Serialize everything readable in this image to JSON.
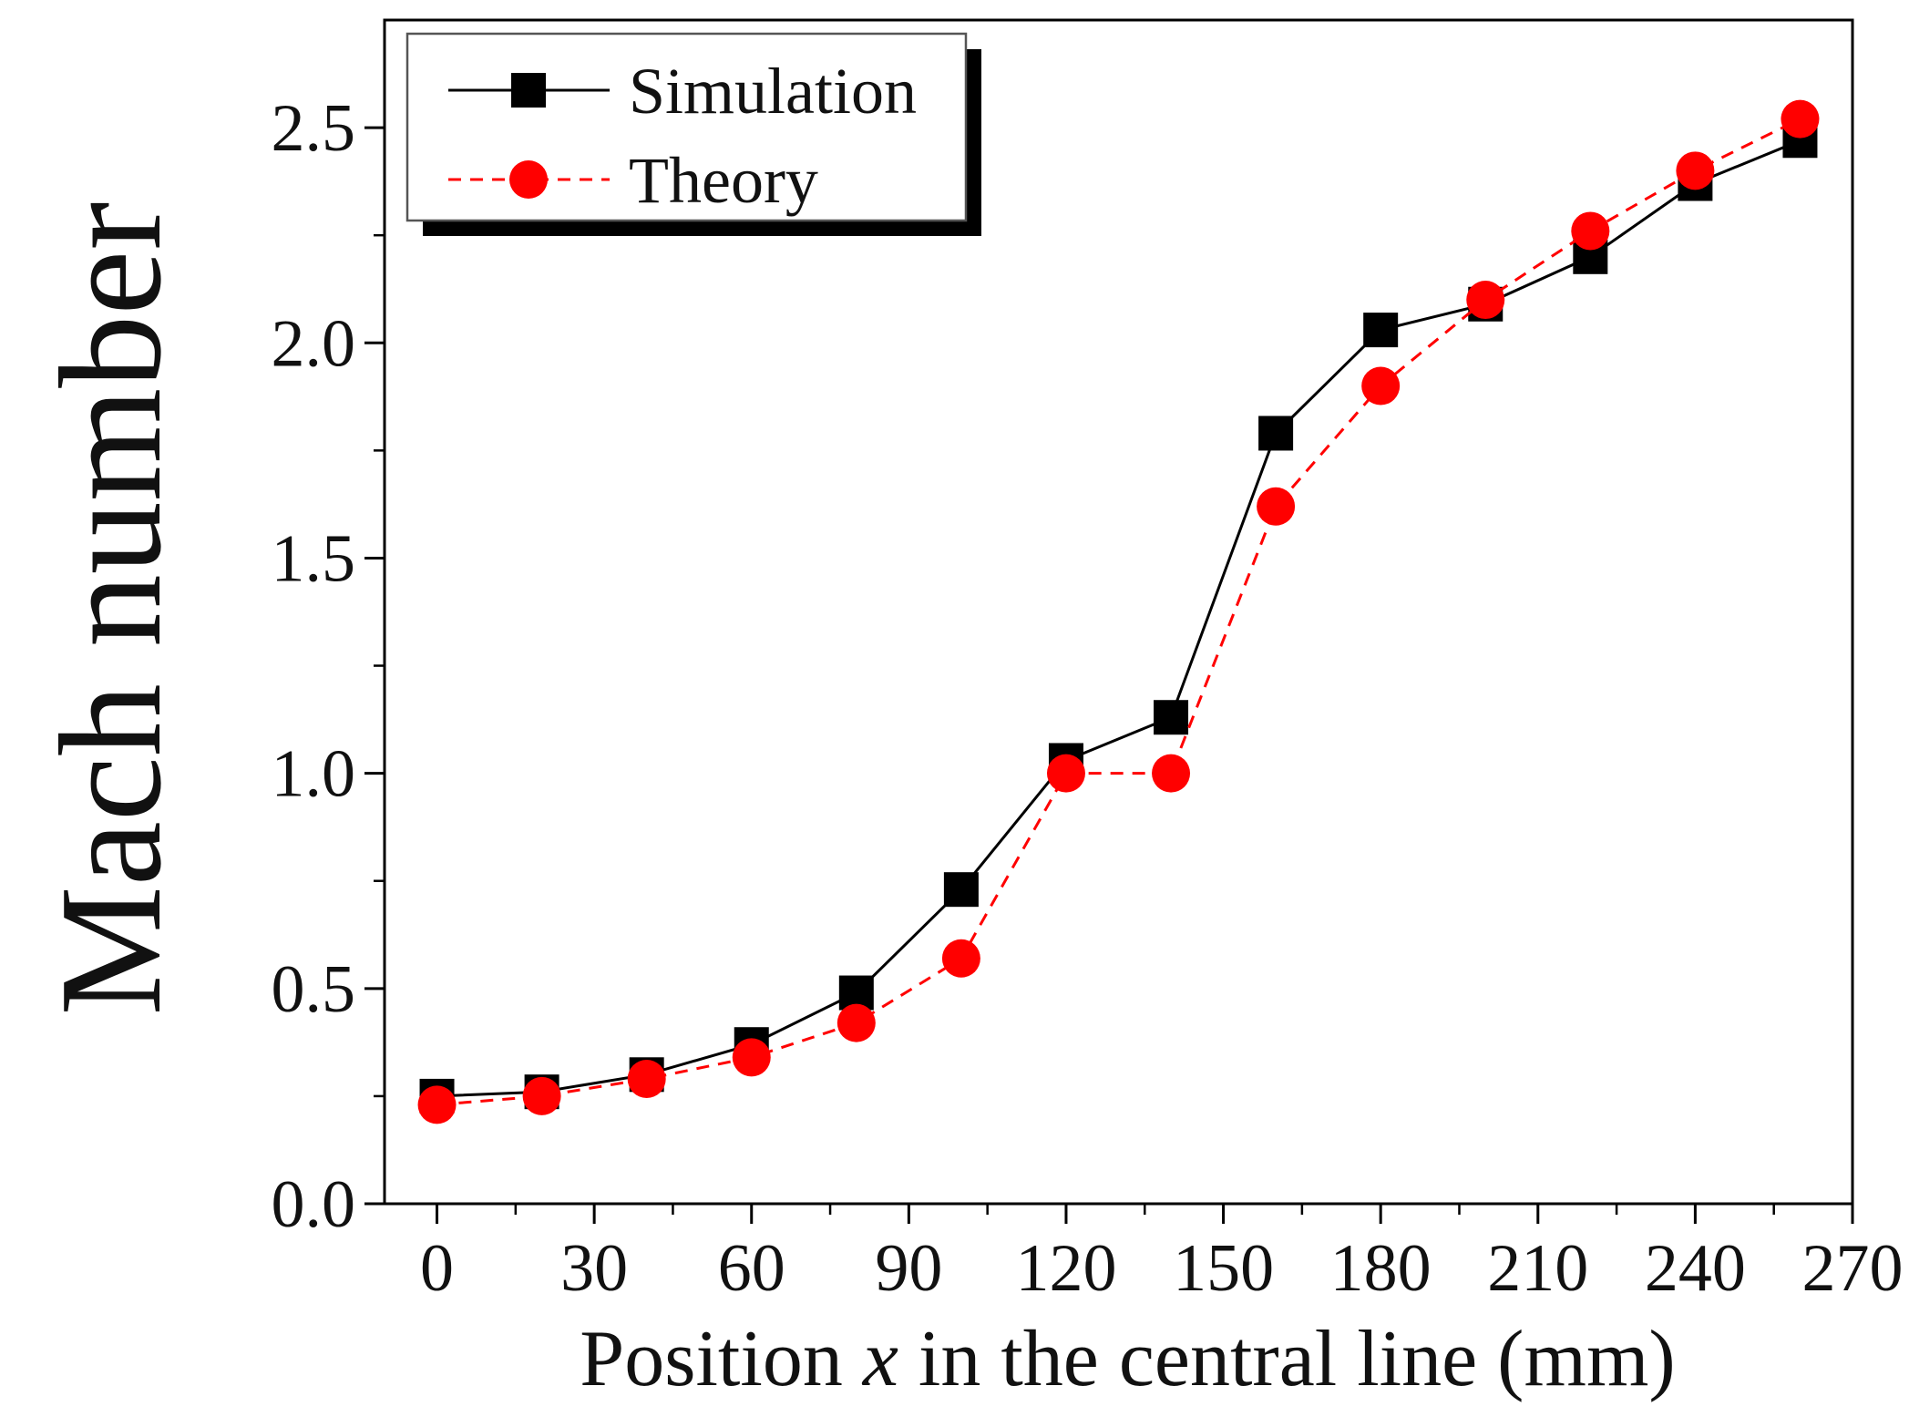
{
  "chart_data": {
    "type": "line",
    "title": "",
    "xlabel_prefix": "Position ",
    "xlabel_var": "x",
    "xlabel_suffix": " in the central line (mm)",
    "ylabel": "Mach number",
    "xlim": [
      -10,
      270
    ],
    "ylim": [
      0.0,
      2.75
    ],
    "xticks": [
      0,
      30,
      60,
      90,
      120,
      150,
      180,
      210,
      240,
      270
    ],
    "xtick_labels": [
      "0",
      "30",
      "60",
      "90",
      "120",
      "150",
      "180",
      "210",
      "240",
      "270"
    ],
    "xticks_minor_step": 15,
    "yticks": [
      0.0,
      0.5,
      1.0,
      1.5,
      2.0,
      2.5
    ],
    "ytick_labels": [
      "0.0",
      "0.5",
      "1.0",
      "1.5",
      "2.0",
      "2.5"
    ],
    "yticks_minor_step": 0.25,
    "grid": false,
    "legend_position": "top-left",
    "x": [
      0,
      20,
      40,
      60,
      80,
      100,
      120,
      140,
      160,
      180,
      200,
      220,
      240,
      260
    ],
    "series": [
      {
        "name": "Simulation",
        "color": "#000000",
        "marker": "square",
        "line_style": "solid",
        "values": [
          0.25,
          0.26,
          0.3,
          0.37,
          0.49,
          0.73,
          1.03,
          1.13,
          1.79,
          2.03,
          2.09,
          2.2,
          2.37,
          2.47
        ]
      },
      {
        "name": "Theory",
        "color": "#ff0000",
        "marker": "circle",
        "line_style": "dashed",
        "values": [
          0.23,
          0.25,
          0.29,
          0.34,
          0.42,
          0.57,
          1.0,
          1.0,
          1.62,
          1.9,
          2.1,
          2.26,
          2.4,
          2.52
        ]
      }
    ]
  }
}
